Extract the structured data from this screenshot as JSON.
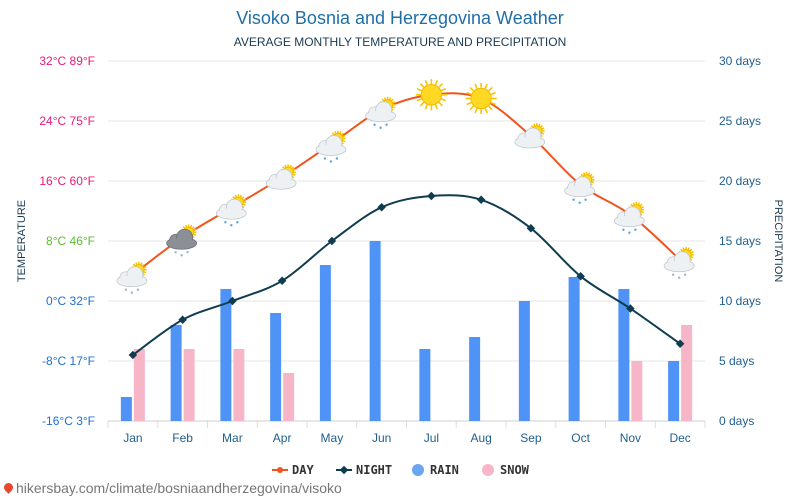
{
  "chart_data": {
    "type": "combo",
    "title": "Visoko Bosnia and Herzegovina Weather",
    "subtitle": "AVERAGE MONTHLY TEMPERATURE AND PRECIPITATION",
    "y_left_label": "TEMPERATURE",
    "y_right_label": "PRECIPITATION",
    "y_left_ticks": [
      {
        "value": 32,
        "label": "32°C 89°F",
        "color": "#e8197a"
      },
      {
        "value": 24,
        "label": "24°C 75°F",
        "color": "#e8197a"
      },
      {
        "value": 16,
        "label": "16°C 60°F",
        "color": "#e8197a"
      },
      {
        "value": 8,
        "label": "8°C 46°F",
        "color": "#5dbb2f"
      },
      {
        "value": 0,
        "label": "0°C 32°F",
        "color": "#1f6fd0"
      },
      {
        "value": -8,
        "label": "-8°C 17°F",
        "color": "#1f6fd0"
      },
      {
        "value": -16,
        "label": "-16°C 3°F",
        "color": "#1f6fd0"
      }
    ],
    "y_left_range": [
      -16,
      32
    ],
    "y_right_ticks": [
      {
        "value": 30,
        "label": "30 days"
      },
      {
        "value": 25,
        "label": "25 days"
      },
      {
        "value": 20,
        "label": "20 days"
      },
      {
        "value": 15,
        "label": "15 days"
      },
      {
        "value": 10,
        "label": "10 days"
      },
      {
        "value": 5,
        "label": "5 days"
      },
      {
        "value": 0,
        "label": "0 days"
      }
    ],
    "y_right_range": [
      0,
      30
    ],
    "categories": [
      "Jan",
      "Feb",
      "Mar",
      "Apr",
      "May",
      "Jun",
      "Jul",
      "Aug",
      "Sep",
      "Oct",
      "Nov",
      "Dec"
    ],
    "series": [
      {
        "name": "DAY",
        "kind": "line",
        "color": "#f0541c",
        "values": [
          3.5,
          8.5,
          12.5,
          16.5,
          21,
          25.5,
          27.5,
          27,
          22,
          15.5,
          11.5,
          5.5
        ]
      },
      {
        "name": "NIGHT",
        "kind": "line",
        "color": "#0f3d4f",
        "values": [
          -7.2,
          -2.5,
          0,
          2.7,
          8,
          12.5,
          14,
          13.5,
          9.7,
          3.3,
          -1,
          -5.7
        ]
      },
      {
        "name": "RAIN",
        "kind": "bar",
        "color": "#4e93f5",
        "legend_color": "#6aa5f0",
        "values": [
          2,
          8,
          11,
          9,
          13,
          15,
          6,
          7,
          10,
          12,
          11,
          5
        ]
      },
      {
        "name": "SNOW",
        "kind": "bar",
        "color": "#f7b6c8",
        "legend_color": "#f7b6c8",
        "values": [
          6,
          6,
          6,
          4,
          0,
          0,
          0,
          0,
          0,
          0,
          5,
          8
        ]
      }
    ],
    "weather_icons": [
      "cloud-sun-snow-icon",
      "cloud-dark-snow-icon",
      "cloud-sun-rain-icon",
      "cloud-sun-icon",
      "cloud-sun-rain-icon",
      "cloud-sun-rain-icon",
      "sun-icon",
      "sun-icon",
      "cloud-sun-icon",
      "cloud-sun-rain-icon",
      "cloud-sun-rain-icon",
      "cloud-sun-snow-icon"
    ],
    "grid": true,
    "legend_position": "bottom-center"
  },
  "footer": {
    "url": "hikersbay.com/climate/bosniaandherzegovina/visoko"
  }
}
